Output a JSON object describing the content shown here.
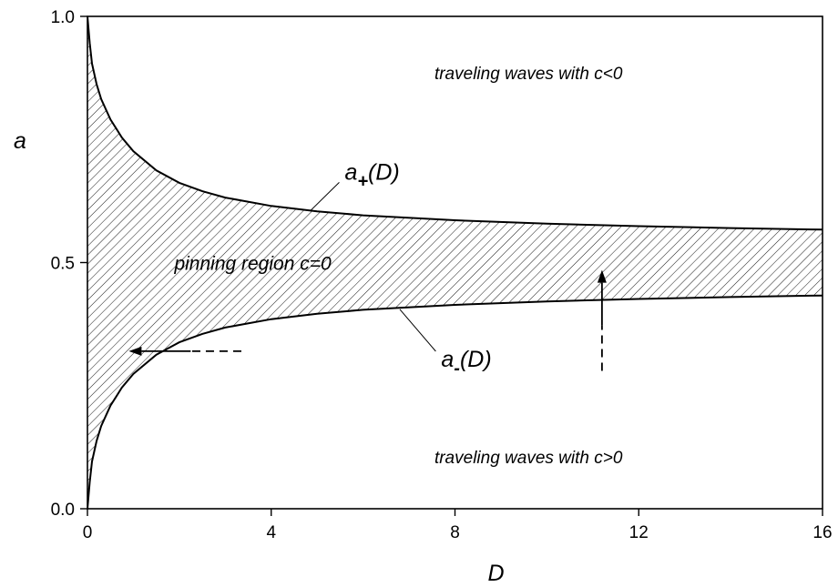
{
  "chart_data": {
    "type": "area",
    "title": "",
    "xlabel": "D",
    "ylabel": "a",
    "xlim": [
      0,
      16
    ],
    "ylim": [
      0.0,
      1.0
    ],
    "xticks": [
      "0",
      "4",
      "8",
      "12",
      "16"
    ],
    "yticks": [
      "0.0",
      "0.5",
      "1.0"
    ],
    "grid": false,
    "legend": "none",
    "series": [
      {
        "name": "a+(D)",
        "x": [
          0,
          0.05,
          0.1,
          0.2,
          0.3,
          0.5,
          0.75,
          1,
          1.5,
          2,
          2.5,
          3,
          4,
          5,
          6,
          8,
          10,
          12,
          14,
          16
        ],
        "y": [
          1.0,
          0.946,
          0.904,
          0.862,
          0.832,
          0.791,
          0.754,
          0.726,
          0.687,
          0.662,
          0.645,
          0.632,
          0.615,
          0.604,
          0.596,
          0.586,
          0.579,
          0.574,
          0.57,
          0.567
        ]
      },
      {
        "name": "a-(D)",
        "x": [
          0,
          0.05,
          0.1,
          0.2,
          0.3,
          0.5,
          0.75,
          1,
          1.5,
          2,
          2.5,
          3,
          4,
          5,
          6,
          8,
          10,
          12,
          14,
          16
        ],
        "y": [
          0.0,
          0.054,
          0.096,
          0.138,
          0.168,
          0.209,
          0.246,
          0.274,
          0.313,
          0.338,
          0.355,
          0.368,
          0.385,
          0.396,
          0.404,
          0.414,
          0.421,
          0.426,
          0.43,
          0.433
        ]
      }
    ],
    "fill_between": {
      "pattern": "hatch"
    },
    "annotations": [
      {
        "text": "traveling waves with c<0",
        "x": 9.6,
        "y": 0.885
      },
      {
        "text": "traveling waves with c>0",
        "x": 9.6,
        "y": 0.105
      },
      {
        "text": "pinning region  c=0",
        "x": 3.6,
        "y": 0.5
      },
      {
        "label": "a",
        "subscript": "+",
        "suffix": "(D)",
        "x": 5.6,
        "y": 0.685
      },
      {
        "label": "a",
        "subscript": "-",
        "suffix": "(D)",
        "x": 7.7,
        "y": 0.305
      }
    ],
    "arrows": [
      {
        "style": "dashed-solid",
        "from": [
          3.35,
          0.32
        ],
        "to": [
          0.9,
          0.32
        ]
      },
      {
        "style": "dashed-solid",
        "from": [
          11.2,
          0.28
        ],
        "to": [
          11.2,
          0.485
        ]
      }
    ]
  }
}
